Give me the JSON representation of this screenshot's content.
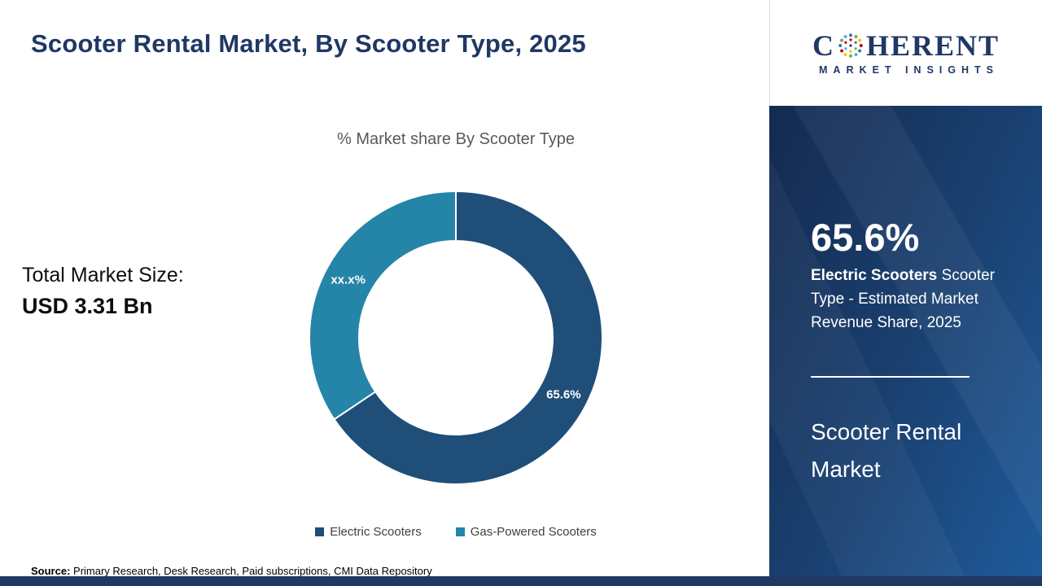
{
  "title": "Scooter Rental Market, By Scooter Type, 2025",
  "chart": {
    "subtitle": "% Market share By Scooter Type"
  },
  "chart_data": {
    "type": "pie",
    "donut": true,
    "title": "% Market share By Scooter Type",
    "categories": [
      "Electric Scooters",
      "Gas-Powered Scooters"
    ],
    "values": [
      65.6,
      34.4
    ],
    "slice_labels": [
      "65.6%",
      "xx.x%"
    ],
    "colors": [
      "#1f4e79",
      "#2585a8"
    ],
    "legend_position": "bottom"
  },
  "stats": {
    "total_label": "Total Market Size:",
    "total_value": "USD 3.31 Bn"
  },
  "source": {
    "label": "Source:",
    "text": " Primary Research, Desk Research, Paid subscriptions, CMI Data Repository"
  },
  "sidebar": {
    "logo_line1_pre": "C",
    "logo_line1_post": "HERENT",
    "logo_line2": "MARKET INSIGHTS",
    "stat_value": "65.6%",
    "stat_bold": "Electric Scooters",
    "stat_rest": " Scooter Type - Estimated Market Revenue Share, 2025",
    "market_name": "Scooter Rental Market",
    "accent_navy": "#1f3864",
    "panel_gradient_start": "#142a50",
    "panel_gradient_end": "#1f5a9b"
  }
}
